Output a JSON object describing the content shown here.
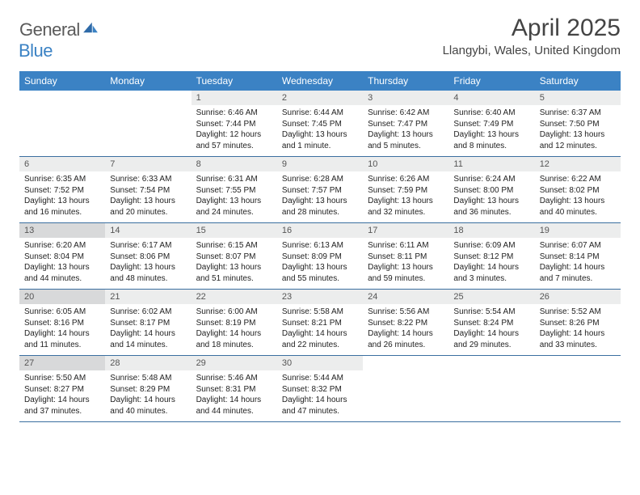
{
  "logo": {
    "general": "General",
    "blue": "Blue"
  },
  "title": "April 2025",
  "location": "Llangybi, Wales, United Kingdom",
  "colors": {
    "header_bar": "#3b82c4",
    "header_text": "#ffffff",
    "daynum_bg": "#eceded",
    "daynum_shade_bg": "#d8d9da",
    "week_divider": "#3b6fa0",
    "title_color": "#444444",
    "body_text": "#222222"
  },
  "day_names": [
    "Sunday",
    "Monday",
    "Tuesday",
    "Wednesday",
    "Thursday",
    "Friday",
    "Saturday"
  ],
  "weeks": [
    [
      {
        "empty": true
      },
      {
        "empty": true
      },
      {
        "num": "1",
        "shade": false,
        "sunrise": "Sunrise: 6:46 AM",
        "sunset": "Sunset: 7:44 PM",
        "daylight": "Daylight: 12 hours and 57 minutes."
      },
      {
        "num": "2",
        "shade": false,
        "sunrise": "Sunrise: 6:44 AM",
        "sunset": "Sunset: 7:45 PM",
        "daylight": "Daylight: 13 hours and 1 minute."
      },
      {
        "num": "3",
        "shade": false,
        "sunrise": "Sunrise: 6:42 AM",
        "sunset": "Sunset: 7:47 PM",
        "daylight": "Daylight: 13 hours and 5 minutes."
      },
      {
        "num": "4",
        "shade": false,
        "sunrise": "Sunrise: 6:40 AM",
        "sunset": "Sunset: 7:49 PM",
        "daylight": "Daylight: 13 hours and 8 minutes."
      },
      {
        "num": "5",
        "shade": false,
        "sunrise": "Sunrise: 6:37 AM",
        "sunset": "Sunset: 7:50 PM",
        "daylight": "Daylight: 13 hours and 12 minutes."
      }
    ],
    [
      {
        "num": "6",
        "shade": false,
        "sunrise": "Sunrise: 6:35 AM",
        "sunset": "Sunset: 7:52 PM",
        "daylight": "Daylight: 13 hours and 16 minutes."
      },
      {
        "num": "7",
        "shade": false,
        "sunrise": "Sunrise: 6:33 AM",
        "sunset": "Sunset: 7:54 PM",
        "daylight": "Daylight: 13 hours and 20 minutes."
      },
      {
        "num": "8",
        "shade": false,
        "sunrise": "Sunrise: 6:31 AM",
        "sunset": "Sunset: 7:55 PM",
        "daylight": "Daylight: 13 hours and 24 minutes."
      },
      {
        "num": "9",
        "shade": false,
        "sunrise": "Sunrise: 6:28 AM",
        "sunset": "Sunset: 7:57 PM",
        "daylight": "Daylight: 13 hours and 28 minutes."
      },
      {
        "num": "10",
        "shade": false,
        "sunrise": "Sunrise: 6:26 AM",
        "sunset": "Sunset: 7:59 PM",
        "daylight": "Daylight: 13 hours and 32 minutes."
      },
      {
        "num": "11",
        "shade": false,
        "sunrise": "Sunrise: 6:24 AM",
        "sunset": "Sunset: 8:00 PM",
        "daylight": "Daylight: 13 hours and 36 minutes."
      },
      {
        "num": "12",
        "shade": false,
        "sunrise": "Sunrise: 6:22 AM",
        "sunset": "Sunset: 8:02 PM",
        "daylight": "Daylight: 13 hours and 40 minutes."
      }
    ],
    [
      {
        "num": "13",
        "shade": true,
        "sunrise": "Sunrise: 6:20 AM",
        "sunset": "Sunset: 8:04 PM",
        "daylight": "Daylight: 13 hours and 44 minutes."
      },
      {
        "num": "14",
        "shade": false,
        "sunrise": "Sunrise: 6:17 AM",
        "sunset": "Sunset: 8:06 PM",
        "daylight": "Daylight: 13 hours and 48 minutes."
      },
      {
        "num": "15",
        "shade": false,
        "sunrise": "Sunrise: 6:15 AM",
        "sunset": "Sunset: 8:07 PM",
        "daylight": "Daylight: 13 hours and 51 minutes."
      },
      {
        "num": "16",
        "shade": false,
        "sunrise": "Sunrise: 6:13 AM",
        "sunset": "Sunset: 8:09 PM",
        "daylight": "Daylight: 13 hours and 55 minutes."
      },
      {
        "num": "17",
        "shade": false,
        "sunrise": "Sunrise: 6:11 AM",
        "sunset": "Sunset: 8:11 PM",
        "daylight": "Daylight: 13 hours and 59 minutes."
      },
      {
        "num": "18",
        "shade": false,
        "sunrise": "Sunrise: 6:09 AM",
        "sunset": "Sunset: 8:12 PM",
        "daylight": "Daylight: 14 hours and 3 minutes."
      },
      {
        "num": "19",
        "shade": false,
        "sunrise": "Sunrise: 6:07 AM",
        "sunset": "Sunset: 8:14 PM",
        "daylight": "Daylight: 14 hours and 7 minutes."
      }
    ],
    [
      {
        "num": "20",
        "shade": true,
        "sunrise": "Sunrise: 6:05 AM",
        "sunset": "Sunset: 8:16 PM",
        "daylight": "Daylight: 14 hours and 11 minutes."
      },
      {
        "num": "21",
        "shade": false,
        "sunrise": "Sunrise: 6:02 AM",
        "sunset": "Sunset: 8:17 PM",
        "daylight": "Daylight: 14 hours and 14 minutes."
      },
      {
        "num": "22",
        "shade": false,
        "sunrise": "Sunrise: 6:00 AM",
        "sunset": "Sunset: 8:19 PM",
        "daylight": "Daylight: 14 hours and 18 minutes."
      },
      {
        "num": "23",
        "shade": false,
        "sunrise": "Sunrise: 5:58 AM",
        "sunset": "Sunset: 8:21 PM",
        "daylight": "Daylight: 14 hours and 22 minutes."
      },
      {
        "num": "24",
        "shade": false,
        "sunrise": "Sunrise: 5:56 AM",
        "sunset": "Sunset: 8:22 PM",
        "daylight": "Daylight: 14 hours and 26 minutes."
      },
      {
        "num": "25",
        "shade": false,
        "sunrise": "Sunrise: 5:54 AM",
        "sunset": "Sunset: 8:24 PM",
        "daylight": "Daylight: 14 hours and 29 minutes."
      },
      {
        "num": "26",
        "shade": false,
        "sunrise": "Sunrise: 5:52 AM",
        "sunset": "Sunset: 8:26 PM",
        "daylight": "Daylight: 14 hours and 33 minutes."
      }
    ],
    [
      {
        "num": "27",
        "shade": true,
        "sunrise": "Sunrise: 5:50 AM",
        "sunset": "Sunset: 8:27 PM",
        "daylight": "Daylight: 14 hours and 37 minutes."
      },
      {
        "num": "28",
        "shade": false,
        "sunrise": "Sunrise: 5:48 AM",
        "sunset": "Sunset: 8:29 PM",
        "daylight": "Daylight: 14 hours and 40 minutes."
      },
      {
        "num": "29",
        "shade": false,
        "sunrise": "Sunrise: 5:46 AM",
        "sunset": "Sunset: 8:31 PM",
        "daylight": "Daylight: 14 hours and 44 minutes."
      },
      {
        "num": "30",
        "shade": false,
        "sunrise": "Sunrise: 5:44 AM",
        "sunset": "Sunset: 8:32 PM",
        "daylight": "Daylight: 14 hours and 47 minutes."
      },
      {
        "empty": true
      },
      {
        "empty": true
      },
      {
        "empty": true
      }
    ]
  ]
}
